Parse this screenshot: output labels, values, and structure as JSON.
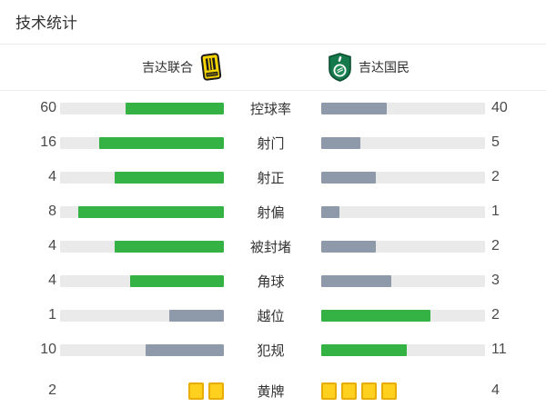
{
  "title": "技术统计",
  "teams": {
    "home": {
      "name": "吉达联合",
      "logo": "al-ittihad-crest"
    },
    "away": {
      "name": "吉达国民",
      "logo": "al-ahli-crest"
    }
  },
  "colors": {
    "win": "#34b244",
    "lose": "#8e99a9",
    "track": "#eaeaea",
    "card_fill": "#ffd01e",
    "card_border": "#e9ac00"
  },
  "stats": [
    {
      "label": "控球率",
      "home": 60,
      "away": 40
    },
    {
      "label": "射门",
      "home": 16,
      "away": 5
    },
    {
      "label": "射正",
      "home": 4,
      "away": 2
    },
    {
      "label": "射偏",
      "home": 8,
      "away": 1
    },
    {
      "label": "被封堵",
      "home": 4,
      "away": 2
    },
    {
      "label": "角球",
      "home": 4,
      "away": 3
    },
    {
      "label": "越位",
      "home": 1,
      "away": 2
    },
    {
      "label": "犯规",
      "home": 10,
      "away": 11
    }
  ],
  "cards_row": {
    "label": "黄牌",
    "home": 2,
    "away": 4
  }
}
